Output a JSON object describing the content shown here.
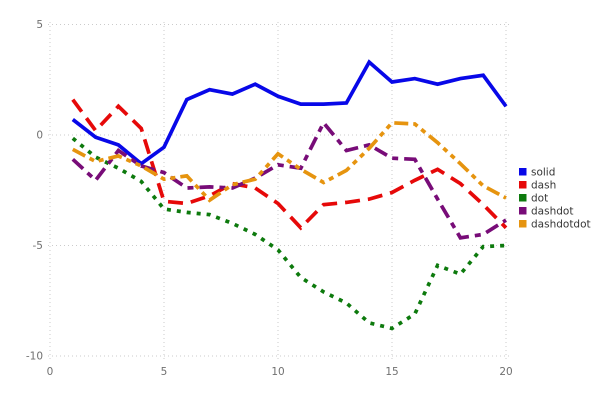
{
  "chart": {
    "background": "#ffffff",
    "grid_color": "#cbcbcb",
    "tick_label_color": "#707070",
    "legend_text_color": "#363636"
  },
  "chart_data": {
    "type": "line",
    "title": "",
    "xlabel": "",
    "ylabel": "",
    "x": [
      1,
      2,
      3,
      4,
      5,
      6,
      7,
      8,
      9,
      10,
      11,
      12,
      13,
      14,
      15,
      16,
      17,
      18,
      19,
      20
    ],
    "series": [
      {
        "name": "solid",
        "color": "#0808e8",
        "dash": "",
        "values": [
          0.7,
          -0.1,
          -0.45,
          -1.3,
          -0.55,
          1.6,
          2.05,
          1.85,
          2.3,
          1.75,
          1.4,
          1.4,
          1.45,
          3.3,
          2.4,
          2.55,
          2.3,
          2.55,
          2.7,
          1.3
        ]
      },
      {
        "name": "dash",
        "color": "#e60909",
        "dash": "15,8",
        "values": [
          1.6,
          0.2,
          1.3,
          0.3,
          -3.0,
          -3.1,
          -2.75,
          -2.2,
          -2.4,
          -3.1,
          -4.2,
          -3.15,
          -3.05,
          -2.9,
          -2.6,
          -2.05,
          -1.55,
          -2.2,
          -3.15,
          -4.2
        ]
      },
      {
        "name": "dot",
        "color": "#0d7a0d",
        "dash": "4,6",
        "values": [
          -0.15,
          -1.0,
          -1.5,
          -2.1,
          -3.35,
          -3.5,
          -3.6,
          -4.0,
          -4.5,
          -5.2,
          -6.45,
          -7.1,
          -7.6,
          -8.5,
          -8.75,
          -8.1,
          -5.9,
          -6.3,
          -5.05,
          -5.0
        ]
      },
      {
        "name": "dashdot",
        "color": "#780c78",
        "dash": "14,6,6,6",
        "values": [
          -1.1,
          -2.05,
          -0.7,
          -1.4,
          -1.7,
          -2.4,
          -2.35,
          -2.4,
          -1.95,
          -1.35,
          -1.5,
          0.55,
          -0.7,
          -0.45,
          -1.05,
          -1.1,
          -2.9,
          -4.65,
          -4.5,
          -3.85
        ]
      },
      {
        "name": "dashdotdot",
        "color": "#e6940f",
        "dash": "14,5,5,5,5,5",
        "values": [
          -0.65,
          -1.2,
          -0.95,
          -1.4,
          -2.0,
          -1.85,
          -2.95,
          -2.25,
          -2.0,
          -0.85,
          -1.55,
          -2.15,
          -1.6,
          -0.6,
          0.55,
          0.5,
          -0.35,
          -1.3,
          -2.3,
          -2.85
        ]
      }
    ],
    "x_ticks": [
      0,
      5,
      10,
      15,
      20
    ],
    "y_ticks": [
      5,
      0,
      -5,
      -10
    ],
    "xlim": [
      0,
      20.2
    ],
    "ylim": [
      -10.2,
      5.1
    ],
    "grid": true,
    "legend_position": "right"
  }
}
